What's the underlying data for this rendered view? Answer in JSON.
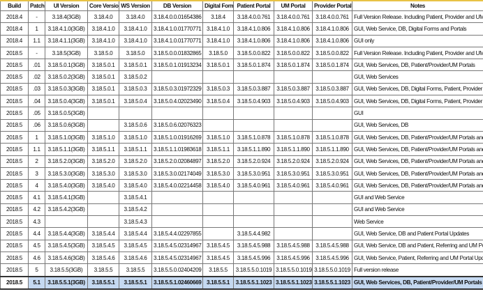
{
  "columns": [
    "Build",
    "Patch",
    "UI Version",
    "Core Version",
    "WS Version",
    "DB Version",
    "Digital Forms",
    "Patient Portal",
    "UM Portal",
    "Provider Portal",
    "Notes"
  ],
  "rows": [
    [
      "2018.4",
      "-",
      "3.18.4(3GB)",
      "3.18.4.0",
      "3.18.4.0",
      "3.18.4.0.0.01654386",
      "3.18.4",
      "3.18.4.0.0.761",
      "3.18.4.0.0.761",
      "3.18.4.0.0.761",
      "Full Version Release. Including Patient, Provider and UM Portals"
    ],
    [
      "2018.4",
      "1",
      "3.18.4.1.0(3GB)",
      "3.18.4.1.0",
      "3.18.4.1.0",
      "3.18.4.1.0.01770771",
      "3.18.4.1.0",
      "3.18.4.1.0.806",
      "3.18.4.1.0.806",
      "3.18.4.1.0.806",
      "GUI, Web Service, DB, Digital Forms and Portals"
    ],
    [
      "2018.4",
      "1.1",
      "3.18.4.1.1(3GB)",
      "3.18.4.1.0",
      "3.18.4.1.0",
      "3.18.4.1.0.01770771",
      "3.18.4.1.0",
      "3.18.4.1.0.806",
      "3.18.4.1.0.806",
      "3.18.4.1.0.806",
      "GUI only"
    ],
    [
      "2018.5",
      "-",
      "3.18.5(3GB)",
      "3.18.5.0",
      "3.18.5.0",
      "3.18.5.0.0.01832865",
      "3.18.5.0",
      "3.18.5.0.0.822",
      "3.18.5.0.0.822",
      "3.18.5.0.0.822",
      "Full Version Release. Including Patient, Provider and UM Portals"
    ],
    [
      "2018.5",
      ".01",
      "3.18.5.0.1(3GB)",
      "3.18.5.0.1",
      "3.18.5.0.1",
      "3.18.5.0.1.01913234",
      "3.18.5.0.1",
      "3.18.5.0.1.874",
      "3.18.5.0.1.874",
      "3.18.5.0.1.874",
      "GUI, Web Services, DB, Patient/Provider/UM Portals"
    ],
    [
      "2018.5",
      ".02",
      "3.18.5.0.2(3GB)",
      "3.18.5.0.1",
      "3.18.5.0.2",
      "",
      "",
      "",
      "",
      "",
      "GUI, Web Services"
    ],
    [
      "2018.5",
      ".03",
      "3.18.5.0.3(3GB)",
      "3.18.5.0.1",
      "3.18.5.0.3",
      "3.18.5.0.3.01972329",
      "3.18.5.0.3",
      "3.18.5.0.3.887",
      "3.18.5.0.3.887",
      "3.18.5.0.3.887",
      "GUI, Web Services, DB, Digital Forms, Patient, Provider and UM Portals"
    ],
    [
      "2018.5",
      ".04",
      "3.18.5.0.4(3GB)",
      "3.18.5.0.1",
      "3.18.5.0.4",
      "3.18.5.0.4.02023490",
      "3.18.5.0.4",
      "3.18.5.0.4.903",
      "3.18.5.0.4.903",
      "3.18.5.0.4.903",
      "GUI, Web Services, DB, Digital Forms, Patient, Provider and UM Portals"
    ],
    [
      "2018.5",
      ".05",
      "3.18.5.0.5(3GB)",
      "",
      "",
      "",
      "",
      "",
      "",
      "",
      "GUI"
    ],
    [
      "2018.5",
      ".06",
      "3.18.5.0.6(3GB)",
      "",
      "3.18.5.0.6",
      "3.18.5.0.6.02076323",
      "",
      "",
      "",
      "",
      "GUI, Web Services, DB"
    ],
    [
      "2018.5",
      "1",
      "3.18.5.1.0(3GB)",
      "3.18.5.1.0",
      "3.18.5.1.0",
      "3.18.5.1.0.01916269",
      "3.18.5.1.0",
      "3.18.5.1.0.878",
      "3.18.5.1.0.878",
      "3.18.5.1.0.878",
      "GUI, Web Services, DB, Patient/Provider/UM Portals and Digital Forms"
    ],
    [
      "2018.5",
      "1.1",
      "3.18.5.1.1(3GB)",
      "3.18.5.1.1",
      "3.18.5.1.1",
      "3.18.5.1.1.01983618",
      "3.18.5.1.1",
      "3.18.5.1.1.890",
      "3.18.5.1.1.890",
      "3.18.5.1.1.890",
      "GUI, Web Services, DB, Patient/Provider/UM Portals and Digital Forms"
    ],
    [
      "2018.5",
      "2",
      "3.18.5.2.0(3GB)",
      "3.18.5.2.0",
      "3.18.5.2.0",
      "3.18.5.2.0.02084897",
      "3.18.5.2.0",
      "3.18.5.2.0.924",
      "3.18.5.2.0.924",
      "3.18.5.2.0.924",
      "GUI, Web Services, DB, Patient/Provider/UM Portals and Digital Forms"
    ],
    [
      "2018.5",
      "3",
      "3.18.5.3.0(3GB)",
      "3.18.5.3.0",
      "3.18.5.3.0",
      "3.18.5.3.0.02174049",
      "3.18.5.3.0",
      "3.18.5.3.0.951",
      "3.18.5.3.0.951",
      "3.18.5.3.0.951",
      "GUI, Web Services, DB, Patient/Provider/UM Portals and Digital Forms"
    ],
    [
      "2018.5",
      "4",
      "3.18.5.4.0(3GB)",
      "3.18.5.4.0",
      "3.18.5.4.0",
      "3.18.5.4.0.02214458",
      "3.18.5.4.0",
      "3.18.5.4.0.961",
      "3.18.5.4.0.961",
      "3.18.5.4.0.961",
      "GUI, Web Services, DB, Patient/Provider/UM Portals and Digital Forms"
    ],
    [
      "2018.5",
      "4.1",
      "3.18.5.4.1(3GB)",
      "",
      "3.18.5.4.1",
      "",
      "",
      "",
      "",
      "",
      "GUI and Web Service"
    ],
    [
      "2018.5",
      "4.2",
      "3.18.5.4.2(3GB)",
      "",
      "3.18.5.4.2",
      "",
      "",
      "",
      "",
      "",
      "GUI and Web Service"
    ],
    [
      "2018.5",
      "4.3",
      "",
      "",
      "3.18.5.4.3",
      "",
      "",
      "",
      "",
      "",
      "Web Service"
    ],
    [
      "2018.5",
      "4.4",
      "3.18.5.4.4(3GB)",
      "3.18.5.4.4",
      "3.18.5.4.4",
      "3.18.5.4.4.02297855",
      "",
      "3.18.5.4.4.982",
      "",
      "",
      "GUI, Web Service, DB and Patient Portal Updates"
    ],
    [
      "2018.5",
      "4.5",
      "3.18.5.4.5(3GB)",
      "3.18.5.4.5",
      "3.18.5.4.5",
      "3.18.5.4.5.02314967",
      "3.18.5.4.5",
      "3.18.5.4.5.988",
      "3.18.5.4.5.988",
      "3.18.5.4.5.988",
      "GUI, Web Service, DB and Patient, Referring and UM Portal Updates"
    ],
    [
      "2018.5",
      "4.6",
      "3.18.5.4.6(3GB)",
      "3.18.5.4.6",
      "3.18.5.4.6",
      "3.18.5.4.5.02314967",
      "3.18.5.4.5",
      "3.18.5.4.5.996",
      "3.18.5.4.5.996",
      "3.18.5.4.5.996",
      "GUI, Web Service, Patient, Referring and UM Portal Updates"
    ],
    [
      "2018.5",
      "5",
      "3.18.5.5(3GB)",
      "3.18.5.5",
      "3.18.5.5",
      "3.18.5.5.0.02404209",
      "3.18.5.5",
      "3.18.5.5.0.1019",
      "3.18.5.5.0.1019",
      "3.18.5.5.0.1019",
      "Full version release"
    ],
    [
      "2018.5",
      "5.1",
      "3.18.5.5.1(3GB)",
      "3.18.5.5.1",
      "3.18.5.5.1",
      "3.18.5.5.1.02460669",
      "3.18.5.5.1",
      "3.18.5.5.1.1023",
      "3.18.5.5.1.1023",
      "3.18.5.5.1.1023",
      "GUI, Web Services, DB, Patient/Provider/UM Portals and Digital Forms"
    ]
  ],
  "highlighted_row": 22,
  "colors": {
    "highlight": "#c5d9f1",
    "header_border": "#e8c245"
  }
}
